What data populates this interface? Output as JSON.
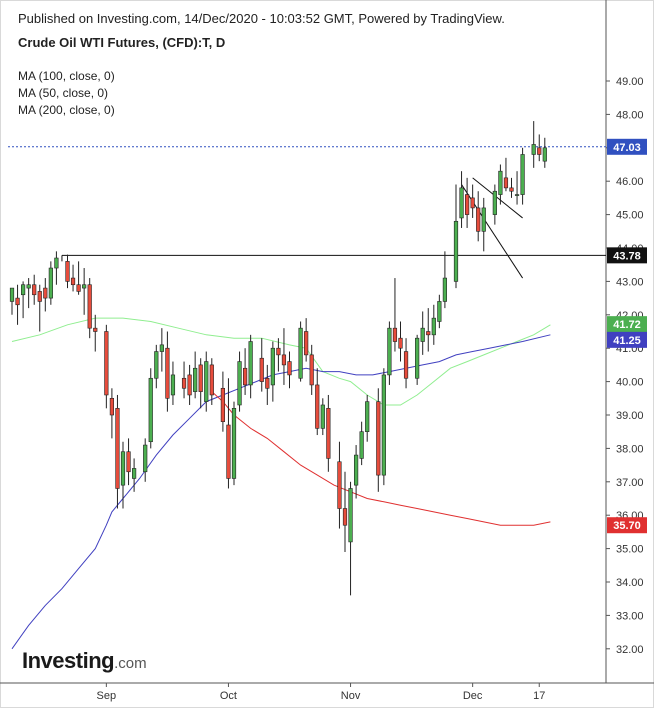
{
  "header": {
    "published": "Published on Investing.com, 14/Dec/2020 - 10:03:52 GMT, Powered by TradingView.",
    "title": "Crude Oil WTI Futures, (CFD):T, D"
  },
  "legend": {
    "items": [
      "MA (100, close, 0)",
      "MA (50, close, 0)",
      "MA (200, close, 0)"
    ]
  },
  "logo": {
    "text": "Investing",
    "suffix": ".com"
  },
  "colors": {
    "bull": "#4caf50",
    "bear": "#e74c3c",
    "wick": "#222222",
    "ma50": "#90ee90",
    "ma100": "#4040c0",
    "ma200": "#e03030",
    "price_line": "#3050c0"
  },
  "chart_data": {
    "type": "candlestick",
    "y_range": [
      31,
      49.5
    ],
    "y_ticks": [
      32,
      33,
      34,
      35,
      36,
      37,
      38,
      39,
      40,
      41,
      42,
      43,
      44,
      45,
      46,
      47,
      48,
      49
    ],
    "y_tick_labels": [
      "32.00",
      "33.00",
      "34.00",
      "35.00",
      "36.00",
      "37.00",
      "38.00",
      "39.00",
      "40.00",
      "41.00",
      "42.00",
      "43.00",
      "44.00",
      "45.00",
      "46.00",
      "47.00",
      "48.00",
      "49.00"
    ],
    "x_ticks": [
      {
        "label": "Sep",
        "day": 17
      },
      {
        "label": "Oct",
        "day": 39
      },
      {
        "label": "Nov",
        "day": 61
      },
      {
        "label": "Dec",
        "day": 83
      },
      {
        "label": "17",
        "day": 95
      }
    ],
    "candles": [
      {
        "d": 0,
        "o": 42.4,
        "h": 42.8,
        "l": 42.0,
        "c": 42.8
      },
      {
        "d": 1,
        "o": 42.5,
        "h": 42.9,
        "l": 41.7,
        "c": 42.3
      },
      {
        "d": 2,
        "o": 42.6,
        "h": 43.0,
        "l": 41.9,
        "c": 42.9
      },
      {
        "d": 3,
        "o": 42.8,
        "h": 43.1,
        "l": 42.2,
        "c": 42.9
      },
      {
        "d": 4,
        "o": 42.9,
        "h": 43.2,
        "l": 42.3,
        "c": 42.6
      },
      {
        "d": 5,
        "o": 42.7,
        "h": 42.9,
        "l": 41.5,
        "c": 42.4
      },
      {
        "d": 6,
        "o": 42.8,
        "h": 43.1,
        "l": 42.1,
        "c": 42.5
      },
      {
        "d": 7,
        "o": 42.5,
        "h": 43.6,
        "l": 42.3,
        "c": 43.4
      },
      {
        "d": 8,
        "o": 43.4,
        "h": 43.9,
        "l": 42.9,
        "c": 43.7
      },
      {
        "d": 10,
        "o": 43.6,
        "h": 43.8,
        "l": 42.8,
        "c": 43.0
      },
      {
        "d": 11,
        "o": 43.1,
        "h": 43.5,
        "l": 42.7,
        "c": 42.9
      },
      {
        "d": 12,
        "o": 42.9,
        "h": 43.6,
        "l": 42.6,
        "c": 42.7
      },
      {
        "d": 13,
        "o": 42.8,
        "h": 43.4,
        "l": 42.0,
        "c": 42.9
      },
      {
        "d": 14,
        "o": 42.9,
        "h": 43.1,
        "l": 41.3,
        "c": 41.6
      },
      {
        "d": 15,
        "o": 41.6,
        "h": 42.0,
        "l": 40.9,
        "c": 41.5
      },
      {
        "d": 17,
        "o": 41.5,
        "h": 41.7,
        "l": 39.2,
        "c": 39.6
      },
      {
        "d": 18,
        "o": 39.5,
        "h": 39.8,
        "l": 38.3,
        "c": 39.0
      },
      {
        "d": 19,
        "o": 39.2,
        "h": 39.6,
        "l": 36.2,
        "c": 36.8
      },
      {
        "d": 20,
        "o": 36.9,
        "h": 38.2,
        "l": 36.2,
        "c": 37.9
      },
      {
        "d": 21,
        "o": 37.9,
        "h": 38.3,
        "l": 36.9,
        "c": 37.3
      },
      {
        "d": 22,
        "o": 37.1,
        "h": 37.7,
        "l": 36.7,
        "c": 37.4
      },
      {
        "d": 24,
        "o": 37.3,
        "h": 38.3,
        "l": 37.0,
        "c": 38.1
      },
      {
        "d": 25,
        "o": 38.2,
        "h": 40.4,
        "l": 38.0,
        "c": 40.1
      },
      {
        "d": 26,
        "o": 40.1,
        "h": 41.1,
        "l": 39.8,
        "c": 40.9
      },
      {
        "d": 27,
        "o": 40.9,
        "h": 41.6,
        "l": 40.3,
        "c": 41.1
      },
      {
        "d": 28,
        "o": 41.0,
        "h": 41.5,
        "l": 39.1,
        "c": 39.5
      },
      {
        "d": 29,
        "o": 39.6,
        "h": 40.6,
        "l": 39.3,
        "c": 40.2
      },
      {
        "d": 31,
        "o": 40.1,
        "h": 40.6,
        "l": 39.5,
        "c": 39.8
      },
      {
        "d": 32,
        "o": 40.2,
        "h": 40.5,
        "l": 39.3,
        "c": 39.6
      },
      {
        "d": 33,
        "o": 39.7,
        "h": 40.9,
        "l": 39.5,
        "c": 40.4
      },
      {
        "d": 34,
        "o": 40.5,
        "h": 40.7,
        "l": 39.2,
        "c": 39.7
      },
      {
        "d": 35,
        "o": 39.4,
        "h": 40.9,
        "l": 39.1,
        "c": 40.6
      },
      {
        "d": 36,
        "o": 40.5,
        "h": 40.7,
        "l": 39.3,
        "c": 39.6
      },
      {
        "d": 38,
        "o": 39.8,
        "h": 40.3,
        "l": 38.5,
        "c": 38.8
      },
      {
        "d": 39,
        "o": 38.7,
        "h": 40.1,
        "l": 36.8,
        "c": 37.1
      },
      {
        "d": 40,
        "o": 37.1,
        "h": 39.4,
        "l": 36.9,
        "c": 39.2
      },
      {
        "d": 41,
        "o": 39.3,
        "h": 40.9,
        "l": 39.1,
        "c": 40.6
      },
      {
        "d": 42,
        "o": 40.4,
        "h": 41.0,
        "l": 39.6,
        "c": 39.9
      },
      {
        "d": 43,
        "o": 39.9,
        "h": 41.4,
        "l": 39.5,
        "c": 41.2
      },
      {
        "d": 45,
        "o": 40.7,
        "h": 41.3,
        "l": 39.7,
        "c": 40.0
      },
      {
        "d": 46,
        "o": 40.1,
        "h": 40.5,
        "l": 39.3,
        "c": 39.8
      },
      {
        "d": 47,
        "o": 39.9,
        "h": 41.2,
        "l": 39.4,
        "c": 41.0
      },
      {
        "d": 48,
        "o": 41.0,
        "h": 41.3,
        "l": 40.3,
        "c": 40.8
      },
      {
        "d": 49,
        "o": 40.8,
        "h": 41.6,
        "l": 39.9,
        "c": 40.5
      },
      {
        "d": 50,
        "o": 40.6,
        "h": 40.9,
        "l": 39.8,
        "c": 40.2
      },
      {
        "d": 52,
        "o": 40.1,
        "h": 41.8,
        "l": 40.0,
        "c": 41.6
      },
      {
        "d": 53,
        "o": 41.5,
        "h": 41.9,
        "l": 40.6,
        "c": 40.8
      },
      {
        "d": 54,
        "o": 40.8,
        "h": 41.1,
        "l": 39.6,
        "c": 39.9
      },
      {
        "d": 55,
        "o": 39.9,
        "h": 40.4,
        "l": 38.4,
        "c": 38.6
      },
      {
        "d": 56,
        "o": 38.6,
        "h": 39.5,
        "l": 38.4,
        "c": 39.3
      },
      {
        "d": 57,
        "o": 39.2,
        "h": 39.6,
        "l": 37.3,
        "c": 37.7
      },
      {
        "d": 59,
        "o": 37.6,
        "h": 38.2,
        "l": 35.6,
        "c": 36.2
      },
      {
        "d": 60,
        "o": 36.2,
        "h": 37.3,
        "l": 34.9,
        "c": 35.7
      },
      {
        "d": 61,
        "o": 35.2,
        "h": 37.0,
        "l": 33.6,
        "c": 36.8
      },
      {
        "d": 62,
        "o": 36.9,
        "h": 38.1,
        "l": 36.5,
        "c": 37.8
      },
      {
        "d": 63,
        "o": 37.7,
        "h": 38.8,
        "l": 37.5,
        "c": 38.5
      },
      {
        "d": 64,
        "o": 38.5,
        "h": 39.6,
        "l": 38.2,
        "c": 39.4
      },
      {
        "d": 66,
        "o": 39.4,
        "h": 39.8,
        "l": 36.7,
        "c": 37.2
      },
      {
        "d": 67,
        "o": 37.2,
        "h": 40.4,
        "l": 36.9,
        "c": 40.2
      },
      {
        "d": 68,
        "o": 40.2,
        "h": 41.8,
        "l": 39.9,
        "c": 41.6
      },
      {
        "d": 69,
        "o": 41.6,
        "h": 43.1,
        "l": 40.9,
        "c": 41.2
      },
      {
        "d": 70,
        "o": 41.3,
        "h": 41.8,
        "l": 40.6,
        "c": 41.0
      },
      {
        "d": 71,
        "o": 40.9,
        "h": 41.3,
        "l": 39.8,
        "c": 40.1
      },
      {
        "d": 73,
        "o": 40.1,
        "h": 41.4,
        "l": 39.9,
        "c": 41.3
      },
      {
        "d": 74,
        "o": 41.2,
        "h": 42.1,
        "l": 40.8,
        "c": 41.6
      },
      {
        "d": 75,
        "o": 41.5,
        "h": 42.2,
        "l": 40.9,
        "c": 41.4
      },
      {
        "d": 76,
        "o": 41.4,
        "h": 42.3,
        "l": 41.1,
        "c": 41.9
      },
      {
        "d": 77,
        "o": 41.8,
        "h": 42.6,
        "l": 41.6,
        "c": 42.4
      },
      {
        "d": 78,
        "o": 42.4,
        "h": 43.9,
        "l": 42.2,
        "c": 43.1
      },
      {
        "d": 80,
        "o": 43.0,
        "h": 45.9,
        "l": 42.8,
        "c": 44.8
      },
      {
        "d": 81,
        "o": 44.9,
        "h": 46.3,
        "l": 44.6,
        "c": 45.8
      },
      {
        "d": 82,
        "o": 45.6,
        "h": 46.1,
        "l": 44.6,
        "c": 45.0
      },
      {
        "d": 83,
        "o": 45.5,
        "h": 45.9,
        "l": 44.9,
        "c": 45.2
      },
      {
        "d": 84,
        "o": 45.2,
        "h": 45.7,
        "l": 44.2,
        "c": 44.5
      },
      {
        "d": 85,
        "o": 44.5,
        "h": 45.5,
        "l": 43.9,
        "c": 45.2
      },
      {
        "d": 87,
        "o": 45.0,
        "h": 45.9,
        "l": 44.7,
        "c": 45.7
      },
      {
        "d": 88,
        "o": 45.6,
        "h": 46.5,
        "l": 45.3,
        "c": 46.3
      },
      {
        "d": 89,
        "o": 46.1,
        "h": 46.7,
        "l": 45.7,
        "c": 45.8
      },
      {
        "d": 90,
        "o": 45.8,
        "h": 46.1,
        "l": 45.5,
        "c": 45.7
      },
      {
        "d": 91,
        "o": 45.6,
        "h": 46.3,
        "l": 45.3,
        "c": 45.6
      },
      {
        "d": 92,
        "o": 45.6,
        "h": 47.0,
        "l": 45.3,
        "c": 46.8
      },
      {
        "d": 94,
        "o": 46.8,
        "h": 47.8,
        "l": 46.4,
        "c": 47.1
      },
      {
        "d": 95,
        "o": 47.0,
        "h": 47.4,
        "l": 46.6,
        "c": 46.8
      },
      {
        "d": 96,
        "o": 46.6,
        "h": 47.3,
        "l": 46.4,
        "c": 47.0
      }
    ],
    "ma50": [
      [
        0,
        41.2
      ],
      [
        5,
        41.4
      ],
      [
        10,
        41.7
      ],
      [
        15,
        41.9
      ],
      [
        20,
        41.9
      ],
      [
        25,
        41.8
      ],
      [
        30,
        41.6
      ],
      [
        35,
        41.4
      ],
      [
        40,
        41.3
      ],
      [
        45,
        41.3
      ],
      [
        50,
        41.1
      ],
      [
        53,
        41.0
      ],
      [
        56,
        40.3
      ],
      [
        59,
        40.1
      ],
      [
        61,
        40.0
      ],
      [
        64,
        39.6
      ],
      [
        67,
        39.3
      ],
      [
        70,
        39.3
      ],
      [
        73,
        39.6
      ],
      [
        76,
        40.0
      ],
      [
        79,
        40.4
      ],
      [
        82,
        40.6
      ],
      [
        85,
        40.8
      ],
      [
        88,
        41.0
      ],
      [
        91,
        41.2
      ],
      [
        94,
        41.4
      ],
      [
        97,
        41.7
      ]
    ],
    "ma100": [
      [
        0,
        32.0
      ],
      [
        3,
        32.7
      ],
      [
        6,
        33.3
      ],
      [
        9,
        33.8
      ],
      [
        12,
        34.4
      ],
      [
        15,
        35.0
      ],
      [
        17,
        35.7
      ],
      [
        18,
        36.1
      ],
      [
        20,
        36.5
      ],
      [
        23,
        37.1
      ],
      [
        26,
        37.8
      ],
      [
        29,
        38.4
      ],
      [
        32,
        38.9
      ],
      [
        35,
        39.4
      ],
      [
        38,
        39.6
      ],
      [
        41,
        39.8
      ],
      [
        44,
        40.0
      ],
      [
        47,
        40.2
      ],
      [
        50,
        40.3
      ],
      [
        53,
        40.4
      ],
      [
        56,
        40.3
      ],
      [
        59,
        40.3
      ],
      [
        62,
        40.2
      ],
      [
        65,
        40.2
      ],
      [
        68,
        40.3
      ],
      [
        71,
        40.4
      ],
      [
        74,
        40.5
      ],
      [
        77,
        40.6
      ],
      [
        80,
        40.8
      ],
      [
        83,
        40.9
      ],
      [
        86,
        41.0
      ],
      [
        89,
        41.1
      ],
      [
        92,
        41.2
      ],
      [
        97,
        41.4
      ]
    ],
    "ma200": [
      [
        36,
        39.7
      ],
      [
        38,
        39.4
      ],
      [
        40,
        39.0
      ],
      [
        43,
        38.6
      ],
      [
        46,
        38.3
      ],
      [
        49,
        37.9
      ],
      [
        52,
        37.5
      ],
      [
        55,
        37.2
      ],
      [
        58,
        36.9
      ],
      [
        61,
        36.7
      ],
      [
        64,
        36.5
      ],
      [
        67,
        36.4
      ],
      [
        70,
        36.3
      ],
      [
        73,
        36.2
      ],
      [
        76,
        36.1
      ],
      [
        79,
        36.0
      ],
      [
        82,
        35.9
      ],
      [
        85,
        35.8
      ],
      [
        88,
        35.7
      ],
      [
        91,
        35.7
      ],
      [
        94,
        35.7
      ],
      [
        97,
        35.8
      ]
    ],
    "current_price": 47.03,
    "hline": {
      "value": 43.78,
      "from_day": 9
    },
    "channel_lines": [
      {
        "from": [
          83,
          46.1
        ],
        "to": [
          92,
          44.9
        ]
      },
      {
        "from": [
          81,
          45.9
        ],
        "to": [
          92,
          43.1
        ]
      }
    ],
    "price_labels": [
      {
        "text": "47.03",
        "value": 47.03,
        "color": "#3050c0"
      },
      {
        "text": "43.78",
        "value": 43.78,
        "color": "#111111"
      },
      {
        "text": "41.72",
        "value": 41.72,
        "color": "#4caf50"
      },
      {
        "text": "41.25",
        "value": 41.25,
        "color": "#4040c0"
      },
      {
        "text": "35.70",
        "value": 35.7,
        "color": "#e03030"
      }
    ]
  }
}
